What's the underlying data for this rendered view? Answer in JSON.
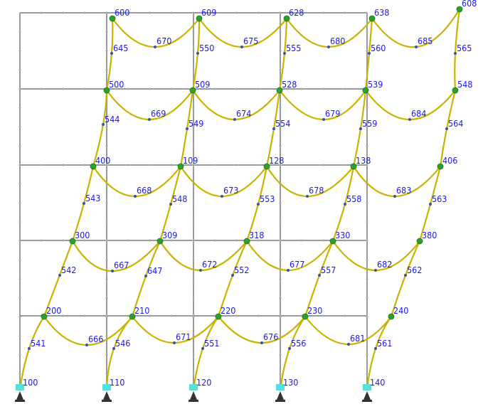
{
  "colors": {
    "background": "#ffffff",
    "original_frame": "#9a9a9a",
    "grid_tick": "#b4b4b4",
    "deformed_shape": "#c8b400",
    "node_dot": "#2ca02c",
    "midpoint_dot": "#3355aa",
    "label": "#1a1aee",
    "support": "#55e0e0",
    "support_base": "#333333"
  },
  "nodes": [
    {
      "label": "100"
    },
    {
      "label": "110"
    },
    {
      "label": "120"
    },
    {
      "label": "130"
    },
    {
      "label": "140"
    },
    {
      "label": "200"
    },
    {
      "label": "210"
    },
    {
      "label": "220"
    },
    {
      "label": "230"
    },
    {
      "label": "240"
    },
    {
      "label": "300"
    },
    {
      "label": "309"
    },
    {
      "label": "318"
    },
    {
      "label": "330"
    },
    {
      "label": "380"
    },
    {
      "label": "400"
    },
    {
      "label": "109"
    },
    {
      "label": "128"
    },
    {
      "label": "138"
    },
    {
      "label": "406"
    },
    {
      "label": "500"
    },
    {
      "label": "509"
    },
    {
      "label": "528"
    },
    {
      "label": "539"
    },
    {
      "label": "548"
    },
    {
      "label": "600"
    },
    {
      "label": "609"
    },
    {
      "label": "628"
    },
    {
      "label": "638"
    },
    {
      "label": "608"
    }
  ],
  "columns": [
    {
      "label": "541"
    },
    {
      "label": "542"
    },
    {
      "label": "543"
    },
    {
      "label": "544"
    },
    {
      "label": "645"
    },
    {
      "label": "546"
    },
    {
      "label": "647"
    },
    {
      "label": "548"
    },
    {
      "label": "549"
    },
    {
      "label": "550"
    },
    {
      "label": "551"
    },
    {
      "label": "552"
    },
    {
      "label": "553"
    },
    {
      "label": "554"
    },
    {
      "label": "555"
    },
    {
      "label": "556"
    },
    {
      "label": "557"
    },
    {
      "label": "558"
    },
    {
      "label": "559"
    },
    {
      "label": "560"
    },
    {
      "label": "561"
    },
    {
      "label": "562"
    },
    {
      "label": "563"
    },
    {
      "label": "564"
    },
    {
      "label": "565"
    }
  ],
  "beams": [
    {
      "label": "666"
    },
    {
      "label": "667"
    },
    {
      "label": "668"
    },
    {
      "label": "669"
    },
    {
      "label": "670"
    },
    {
      "label": "671"
    },
    {
      "label": "672"
    },
    {
      "label": "673"
    },
    {
      "label": "674"
    },
    {
      "label": "675"
    },
    {
      "label": "676"
    },
    {
      "label": "677"
    },
    {
      "label": "678"
    },
    {
      "label": "679"
    },
    {
      "label": "680"
    },
    {
      "label": "681"
    },
    {
      "label": "682"
    },
    {
      "label": "683"
    },
    {
      "label": "684"
    },
    {
      "label": "685"
    }
  ]
}
